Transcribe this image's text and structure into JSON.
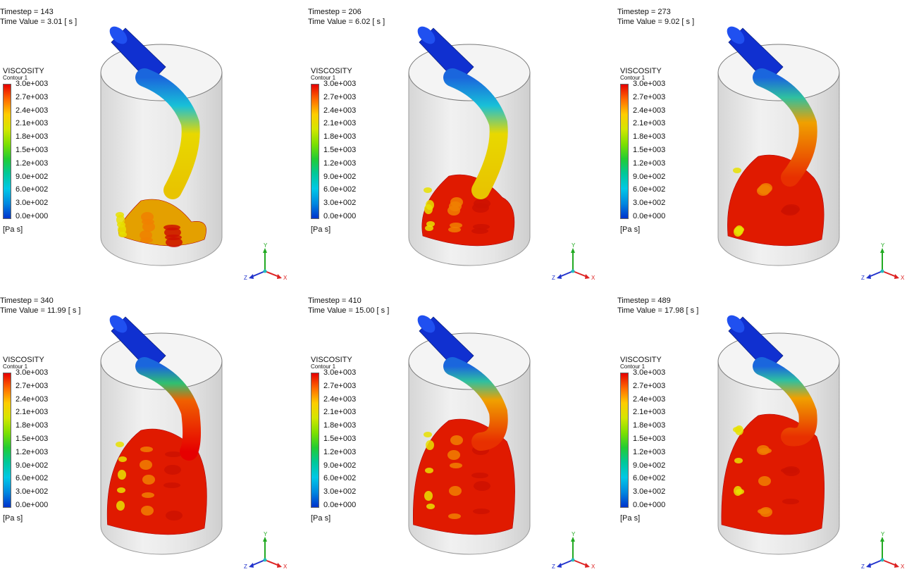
{
  "panels": [
    {
      "timestep": "Timestep = 143",
      "time_value": "Time Value = 3.01 [ s ]"
    },
    {
      "timestep": "Timestep = 206",
      "time_value": "Time Value = 6.02 [ s ]"
    },
    {
      "timestep": "Timestep = 273",
      "time_value": "Time Value = 9.02 [ s ]"
    },
    {
      "timestep": "Timestep = 340",
      "time_value": "Time Value = 11.99 [ s ]"
    },
    {
      "timestep": "Timestep = 410",
      "time_value": "Time Value = 15.00 [ s ]"
    },
    {
      "timestep": "Timestep = 489",
      "time_value": "Time Value = 17.98 [ s ]"
    }
  ],
  "legend": {
    "title": "VISCOSITY",
    "subtitle": "Contour 1",
    "unit": "[Pa s]",
    "ticks": [
      "3.0e+003",
      "2.7e+003",
      "2.4e+003",
      "2.1e+003",
      "1.8e+003",
      "1.5e+003",
      "1.2e+003",
      "9.0e+002",
      "6.0e+002",
      "3.0e+002",
      "0.0e+000"
    ],
    "colors": [
      "#e60000",
      "#ff6a00",
      "#ffcc00",
      "#d4e600",
      "#7ee000",
      "#22cc33",
      "#00c89a",
      "#00c8e6",
      "#0088e0",
      "#0033cc"
    ]
  },
  "axes": {
    "x": "X",
    "y": "Y",
    "z": "Z",
    "x_color": "#dd2222",
    "y_color": "#22aa22",
    "z_color": "#2233cc"
  }
}
